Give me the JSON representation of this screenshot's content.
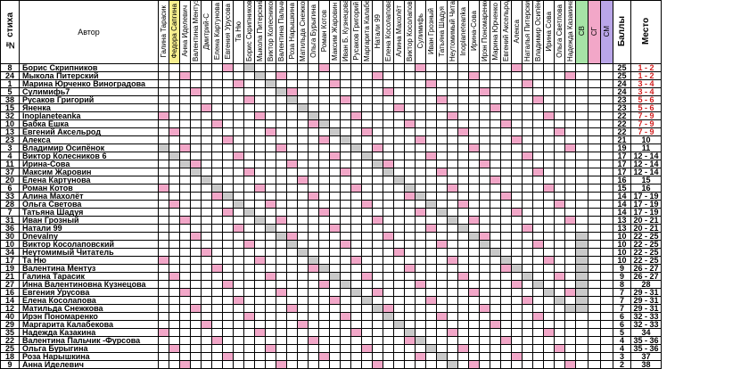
{
  "header": {
    "stix": "№ стиха",
    "author": "Автор",
    "judges": [
      "Галина Тарасик",
      "Федора Сапгина",
      "Анна Иделевич",
      "Валентина Ментуз",
      "Дмитрий-С",
      "Елена Картунова",
      "Евгения Урусова",
      "Та Ню",
      "Борис Скрипников",
      "Мыкола Питерский",
      "Виктор Колесников",
      "Валентина Пальчик",
      "Роза Нарышкина",
      "Матильда Снежкова",
      "Ольга Бурыгина",
      "Роман Котов",
      "Максим Жаровин",
      "Иван Б. Кузнецова",
      "Русаков Григорий",
      "Маргарита Калабекова",
      "Натали 99",
      "Елена Косолапова",
      "Алина Махолёт",
      "Виктор Косолаповский",
      "Сулимифь",
      "Иван Грозный",
      "Татьяна Шадуя",
      "Неутомимый Читатель",
      "Inoplaneteanka",
      "Ирина-Сова",
      "Ирэн Пономаренко",
      "Марина Юрченко",
      "Евгений Аксельрод",
      "Алекса",
      "Наталья Питерский",
      "Владимир Осипёнок",
      "Ирина Сова",
      "Ольга Светлова",
      "Надежда Казакина"
    ],
    "sv": "СВ",
    "sg": "СГ",
    "sm": "СМ",
    "score": "Баллы",
    "place": "Место"
  },
  "colors": {
    "pink": "#f2a7c8",
    "lilac": "#b9a6e8",
    "green": "#a6e3a6",
    "yellow": "#f7ef8f",
    "grey": "#c9c9c9"
  },
  "rows": [
    {
      "n": "8",
      "name": "Борис Скрипников",
      "score": "25",
      "place": "1 - 2"
    },
    {
      "n": "24",
      "name": "Мыкола Питерский",
      "score": "25",
      "place": "1 - 2"
    },
    {
      "n": "1",
      "name": "Марина Юрченко Виноградова",
      "score": "24",
      "place": "3 - 4"
    },
    {
      "n": "5",
      "name": "Сулимифь7",
      "score": "24",
      "place": "3 - 4"
    },
    {
      "n": "38",
      "name": "Русаков Григорий",
      "score": "23",
      "place": "5 - 6"
    },
    {
      "n": "15",
      "name": "Яненка",
      "score": "23",
      "place": "5 - 6"
    },
    {
      "n": "32",
      "name": "Inoplaneteanka",
      "score": "22",
      "place": "7 - 9"
    },
    {
      "n": "10",
      "name": "Бабка Ешка",
      "score": "22",
      "place": "7 - 9"
    },
    {
      "n": "13",
      "name": "Евгений Аксельрод",
      "score": "22",
      "place": "7 - 9"
    },
    {
      "n": "23",
      "name": "Алекса",
      "score": "21",
      "place": "10"
    },
    {
      "n": "3",
      "name": "Владимир Осипёнок",
      "score": "19",
      "place": "11"
    },
    {
      "n": "4",
      "name": "Виктор Колесников 6",
      "score": "17",
      "place": "12 - 14"
    },
    {
      "n": "11",
      "name": "Ирина-Сова",
      "score": "17",
      "place": "12 - 14"
    },
    {
      "n": "37",
      "name": "Максим Жаровин",
      "score": "17",
      "place": "12 - 14"
    },
    {
      "n": "20",
      "name": "Елена Картунова",
      "score": "16",
      "place": "15"
    },
    {
      "n": "6",
      "name": "Роман Котов",
      "score": "15",
      "place": "16"
    },
    {
      "n": "33",
      "name": "Алина Махолёт",
      "score": "14",
      "place": "17 - 19"
    },
    {
      "n": "28",
      "name": "Ольга Светова",
      "score": "14",
      "place": "17 - 19"
    },
    {
      "n": "7",
      "name": "Татьяна Шадуя",
      "score": "14",
      "place": "17 - 19"
    },
    {
      "n": "31",
      "name": "Иван Грозный",
      "score": "13",
      "place": "20 - 21"
    },
    {
      "n": "36",
      "name": "Натали 99",
      "score": "13",
      "place": "20 - 21"
    },
    {
      "n": "30",
      "name": "Dnevalny",
      "score": "10",
      "place": "22 - 25"
    },
    {
      "n": "10",
      "name": "Виктор Косолаповский",
      "score": "10",
      "place": "22 - 25"
    },
    {
      "n": "34",
      "name": "Неутомимый Читатель",
      "score": "10",
      "place": "22 - 25"
    },
    {
      "n": "17",
      "name": "Та Ню",
      "score": "10",
      "place": "22 - 25"
    },
    {
      "n": "19",
      "name": "Валентина Ментуз",
      "score": "9",
      "place": "26 - 27"
    },
    {
      "n": "21",
      "name": "Галина Тарасик",
      "score": "9",
      "place": "26 - 27"
    },
    {
      "n": "27",
      "name": "Инна Валентиновна Кузнецова",
      "score": "8",
      "place": "28"
    },
    {
      "n": "16",
      "name": "Евгения Урусова",
      "score": "7",
      "place": "29 - 31"
    },
    {
      "n": "14",
      "name": "Елена Косолапова",
      "score": "7",
      "place": "29 - 31"
    },
    {
      "n": "12",
      "name": "Матильда Снежкова",
      "score": "7",
      "place": "29 - 31"
    },
    {
      "n": "40",
      "name": "Ирэн Пономаренко",
      "score": "6",
      "place": "32 - 33"
    },
    {
      "n": "29",
      "name": "Маргарита Калабекова",
      "score": "6",
      "place": "32 - 33"
    },
    {
      "n": "35",
      "name": "Надежда Казакина",
      "score": "5",
      "place": "34"
    },
    {
      "n": "22",
      "name": "Валентина Пальчик -Фурсова",
      "score": "4",
      "place": "35 - 36"
    },
    {
      "n": "25",
      "name": "Ольга Бурыгина",
      "score": "4",
      "place": "35 - 36"
    },
    {
      "n": "18",
      "name": "Роза Нарышкина",
      "score": "3",
      "place": "37"
    },
    {
      "n": "9",
      "name": "Анна Иделевич",
      "score": "2",
      "place": "38"
    }
  ]
}
